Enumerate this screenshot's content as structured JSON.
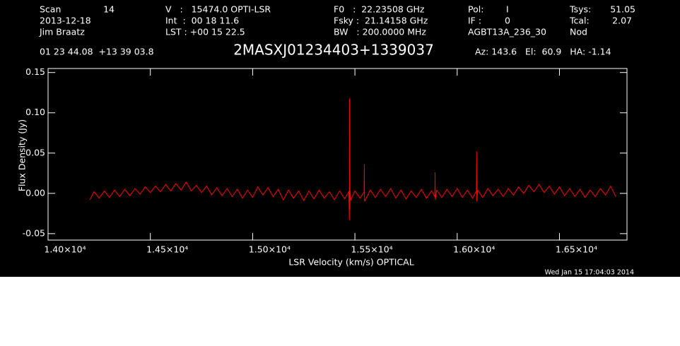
{
  "chart_data": {
    "type": "line",
    "header": [
      "Scan",
      "14",
      "2013-12-18",
      "Jim Braatz",
      "V   :   15474.0 OPTI-LSR",
      "Int  :  00 18 11.6",
      "LST : +00 15 22.5",
      "F0   :  22.23508 GHz",
      "Fsky :  21.14158 GHz",
      "BW   : 200.0000 MHz",
      "Pol:",
      "I",
      "IF :",
      "0",
      "AGBT13A_236_30",
      "Tsys:",
      "51.05",
      "Tcal:",
      "2.07",
      "Nod",
      "01 23 44.08  +13 39 03.8",
      "Az: 143.6   El:  60.9   HA: -1.14"
    ],
    "title": "2MASXJ01234403+1339037",
    "xlabel": "LSR Velocity (km/s) OPTICAL",
    "ylabel": "Flux Density (Jy)",
    "timestamp": "Wed Jan 15 17:04:03 2014",
    "xlim": [
      14000,
      16830
    ],
    "ylim": [
      -0.058,
      0.155
    ],
    "xticks": [
      {
        "value": 14000,
        "label": "1.40×10⁴"
      },
      {
        "value": 14500,
        "label": "1.45×10⁴"
      },
      {
        "value": 15000,
        "label": "1.50×10⁴"
      },
      {
        "value": 15500,
        "label": "1.55×10⁴"
      },
      {
        "value": 16000,
        "label": "1.60×10⁴"
      },
      {
        "value": 16500,
        "label": "1.65×10⁴"
      }
    ],
    "yticks": [
      -0.05,
      {
        "value": 0,
        "label": "0.00"
      },
      0.05,
      {
        "value": 0.1,
        "label": "0.10"
      },
      0.15
    ],
    "series": [
      {
        "color": "#ff0000",
        "x": [
          14204,
          14225,
          14250,
          14275,
          14300,
          14325,
          14350,
          14375,
          14400,
          14425,
          14450,
          14475,
          14500,
          14525,
          14550,
          14575,
          14600,
          14625,
          14650,
          14675,
          14700,
          14725,
          14750,
          14775,
          14800,
          14825,
          14850,
          14875,
          14900,
          14925,
          14950,
          14975,
          15000,
          15025,
          15050,
          15075,
          15100,
          15125,
          15150,
          15175,
          15200,
          15225,
          15250,
          15275,
          15300,
          15325,
          15350,
          15375,
          15400,
          15425,
          15450,
          15470,
          15473,
          15474,
          15475,
          15476,
          15480,
          15500,
          15525,
          15545,
          15546,
          15547,
          15575,
          15600,
          15625,
          15650,
          15675,
          15700,
          15725,
          15750,
          15775,
          15800,
          15825,
          15850,
          15875,
          15891,
          15892,
          15893,
          15900,
          15925,
          15950,
          15975,
          16000,
          16025,
          16050,
          16075,
          16094,
          16095,
          16096,
          16100,
          16125,
          16150,
          16175,
          16200,
          16225,
          16250,
          16275,
          16300,
          16325,
          16350,
          16375,
          16400,
          16425,
          16450,
          16475,
          16500,
          16525,
          16550,
          16575,
          16600,
          16625,
          16650,
          16675,
          16700,
          16725,
          16750,
          16775
        ],
        "values": [
          -0.008,
          0.002,
          -0.006,
          0.003,
          -0.005,
          0.004,
          -0.004,
          0.005,
          -0.003,
          0.006,
          -0.001,
          0.008,
          0.001,
          0.009,
          0.002,
          0.011,
          0.003,
          0.012,
          0.004,
          0.014,
          0.003,
          0.01,
          0.001,
          0.009,
          -0.002,
          0.007,
          -0.003,
          0.006,
          -0.004,
          0.005,
          -0.006,
          0.004,
          -0.005,
          0.008,
          -0.002,
          0.007,
          -0.004,
          0.005,
          -0.008,
          0.004,
          -0.006,
          0.003,
          -0.009,
          0.003,
          -0.007,
          0.004,
          -0.006,
          0.002,
          -0.008,
          0.003,
          -0.007,
          0.002,
          -0.033,
          0.118,
          -0.02,
          0.004,
          -0.008,
          0.003,
          -0.006,
          0.002,
          0.036,
          -0.01,
          0.004,
          -0.005,
          0.005,
          -0.004,
          0.006,
          -0.006,
          0.004,
          -0.007,
          0.003,
          -0.005,
          0.005,
          -0.006,
          0.003,
          -0.004,
          0.026,
          -0.008,
          0.004,
          -0.005,
          0.005,
          -0.004,
          0.006,
          -0.005,
          0.004,
          -0.006,
          0.003,
          0.052,
          -0.01,
          0.004,
          -0.005,
          0.006,
          -0.003,
          0.005,
          -0.004,
          0.006,
          -0.002,
          0.008,
          0.0,
          0.01,
          0.002,
          0.011,
          0.001,
          0.009,
          -0.001,
          0.008,
          -0.003,
          0.006,
          -0.004,
          0.005,
          -0.005,
          0.004,
          -0.004,
          0.006,
          -0.002,
          0.009,
          -0.004
        ]
      }
    ]
  }
}
